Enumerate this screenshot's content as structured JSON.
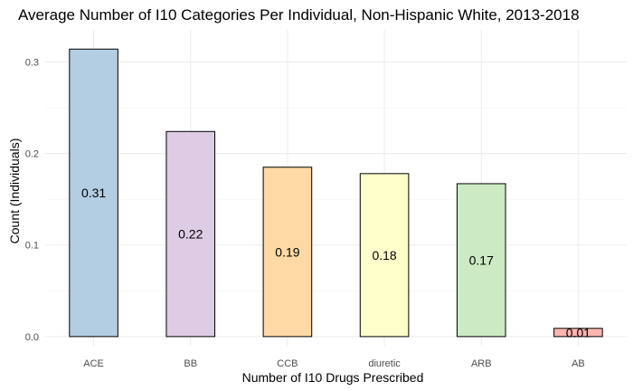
{
  "chart_data": {
    "type": "bar",
    "title": "Average Number of I10 Categories Per Individual, Non-Hispanic White, 2013-2018",
    "xlabel": "Number of I10 Drugs Prescribed",
    "ylabel": "Count (Individuals)",
    "categories": [
      "ACE",
      "BB",
      "CCB",
      "diuretic",
      "ARB",
      "AB"
    ],
    "values": [
      0.314,
      0.224,
      0.185,
      0.178,
      0.167,
      0.009
    ],
    "data_labels": [
      "0.31",
      "0.22",
      "0.19",
      "0.18",
      "0.17",
      "0.01"
    ],
    "colors": [
      "#b3cde3",
      "#decbe4",
      "#fed9a6",
      "#ffffcc",
      "#ccebc5",
      "#fbb4ae"
    ],
    "ylim": [
      -0.01,
      0.335
    ],
    "yticks": [
      0.0,
      0.1,
      0.2,
      0.3
    ],
    "ytick_labels": [
      "0.0",
      "0.1",
      "0.2",
      "0.3"
    ],
    "grid": true,
    "legend": "none"
  }
}
